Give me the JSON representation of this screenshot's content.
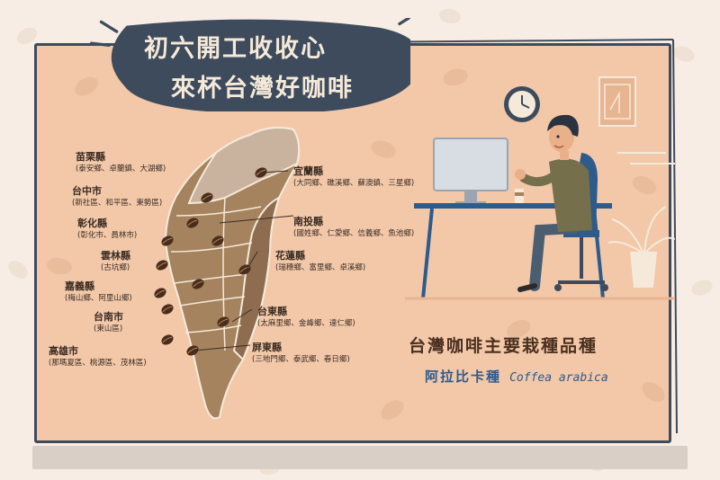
{
  "title": {
    "line1": "初六開工收收心",
    "line2": "來杯台灣好咖啡"
  },
  "regions": [
    {
      "name": "苗栗縣",
      "detail": "(泰安鄉、卓蘭鎮、大湖鄉)"
    },
    {
      "name": "台中市",
      "detail": "(新社區、和平區、東勢區)"
    },
    {
      "name": "彰化縣",
      "detail": "(彰化市、員林市)"
    },
    {
      "name": "雲林縣",
      "detail": "(古坑鄉)"
    },
    {
      "name": "嘉義縣",
      "detail": "(梅山鄉、阿里山鄉)"
    },
    {
      "name": "台南市",
      "detail": "(東山區)"
    },
    {
      "name": "高雄市",
      "detail": "(那瑪夏區、桃源區、茂林區)"
    },
    {
      "name": "宜蘭縣",
      "detail": "(大同鄉、礁溪鄉、蘇澳鎮、三星鄉)"
    },
    {
      "name": "南投縣",
      "detail": "(國姓鄉、仁愛鄉、信義鄉、魚池鄉)"
    },
    {
      "name": "花蓮縣",
      "detail": "(瑞穗鄉、富里鄉、卓溪鄉)"
    },
    {
      "name": "台東縣",
      "detail": "(太麻里鄉、金峰鄉、達仁鄉)"
    },
    {
      "name": "屏東縣",
      "detail": "(三地門鄉、泰武鄉、春日鄉)"
    }
  ],
  "headline": "台灣咖啡主要栽種品種",
  "variety": {
    "zh": "阿拉比卡種",
    "en": "Coffea arabica"
  },
  "colors": {
    "background": "#f7ede4",
    "panel": "#f2c8a9",
    "frame": "#3e4b5c",
    "bubble": "#3e4b5c",
    "map_light": "#c9b29e",
    "map_mid": "#a5835f",
    "map_dark": "#8e6c4f",
    "bean": "#4a2c1a",
    "headline": "#4a2f1f",
    "variety": "#2d5b8c"
  }
}
